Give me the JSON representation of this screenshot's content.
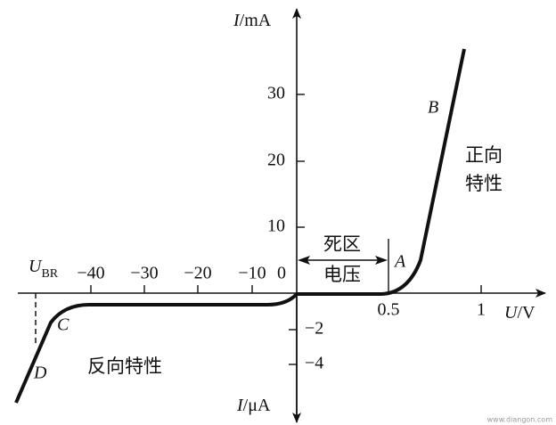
{
  "axes": {
    "y_top": {
      "symbol": "I",
      "unit": "/mA"
    },
    "y_bottom": {
      "symbol": "I",
      "unit": "/μA"
    },
    "x": {
      "symbol": "U",
      "unit": "/V"
    }
  },
  "origin_label": "0",
  "y_ticks_top": [
    "10",
    "20",
    "30"
  ],
  "y_ticks_bottom": [
    "−2",
    "−4"
  ],
  "x_ticks_right": [
    "0.5",
    "1"
  ],
  "x_ticks_left": [
    "−10",
    "−20",
    "−30",
    "−40"
  ],
  "breakdown": {
    "symbol": "U",
    "sub": "BR"
  },
  "points": {
    "A": "A",
    "B": "B",
    "C": "C",
    "D": "D"
  },
  "dead_zone": [
    "死区",
    "电压"
  ],
  "forward": [
    "正向",
    "特性"
  ],
  "reverse": "反向特性",
  "watermark": "www.diangon.com"
}
